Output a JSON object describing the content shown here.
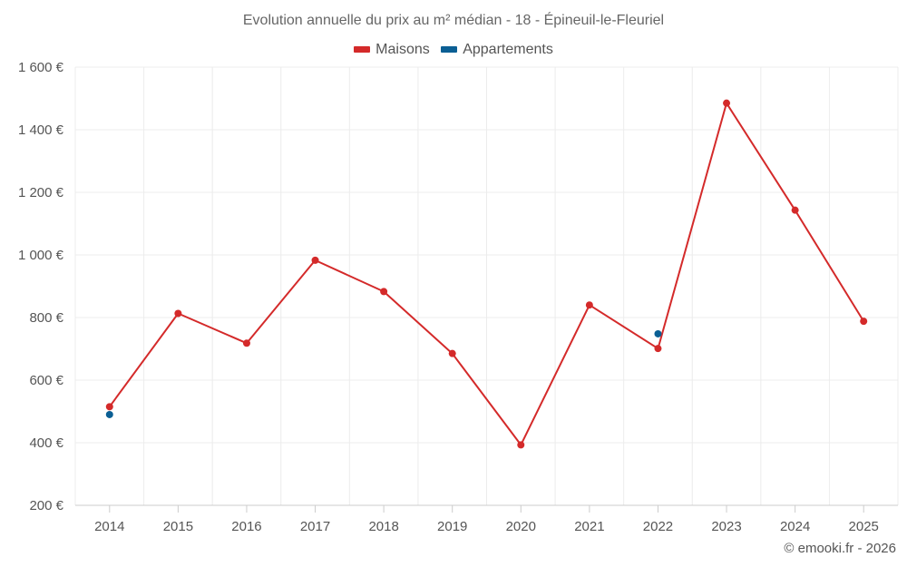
{
  "chart_data": {
    "type": "line",
    "title": "Evolution annuelle du prix au m² médian - 18 - Épineuil-le-Fleuriel",
    "categories": [
      "2014",
      "2015",
      "2016",
      "2017",
      "2018",
      "2019",
      "2020",
      "2021",
      "2022",
      "2023",
      "2024",
      "2025"
    ],
    "series": [
      {
        "name": "Maisons",
        "color": "#d42a2a",
        "values": [
          515,
          813,
          718,
          983,
          883,
          685,
          393,
          840,
          701,
          1485,
          1143,
          788
        ]
      },
      {
        "name": "Appartements",
        "color": "#0b5f94",
        "values": [
          490,
          null,
          null,
          null,
          null,
          null,
          null,
          null,
          748,
          null,
          null,
          null
        ]
      }
    ],
    "y_ticks": [
      200,
      400,
      600,
      800,
      1000,
      1200,
      1400,
      1600
    ],
    "y_tick_labels": [
      "200 €",
      "400 €",
      "600 €",
      "800 €",
      "1 000 €",
      "1 200 €",
      "1 400 €",
      "1 600 €"
    ],
    "ylim": [
      200,
      1600
    ],
    "xlabel": "",
    "ylabel": "",
    "grid": true,
    "legend_position": "top-center"
  },
  "credit": "© emooki.fr - 2026"
}
